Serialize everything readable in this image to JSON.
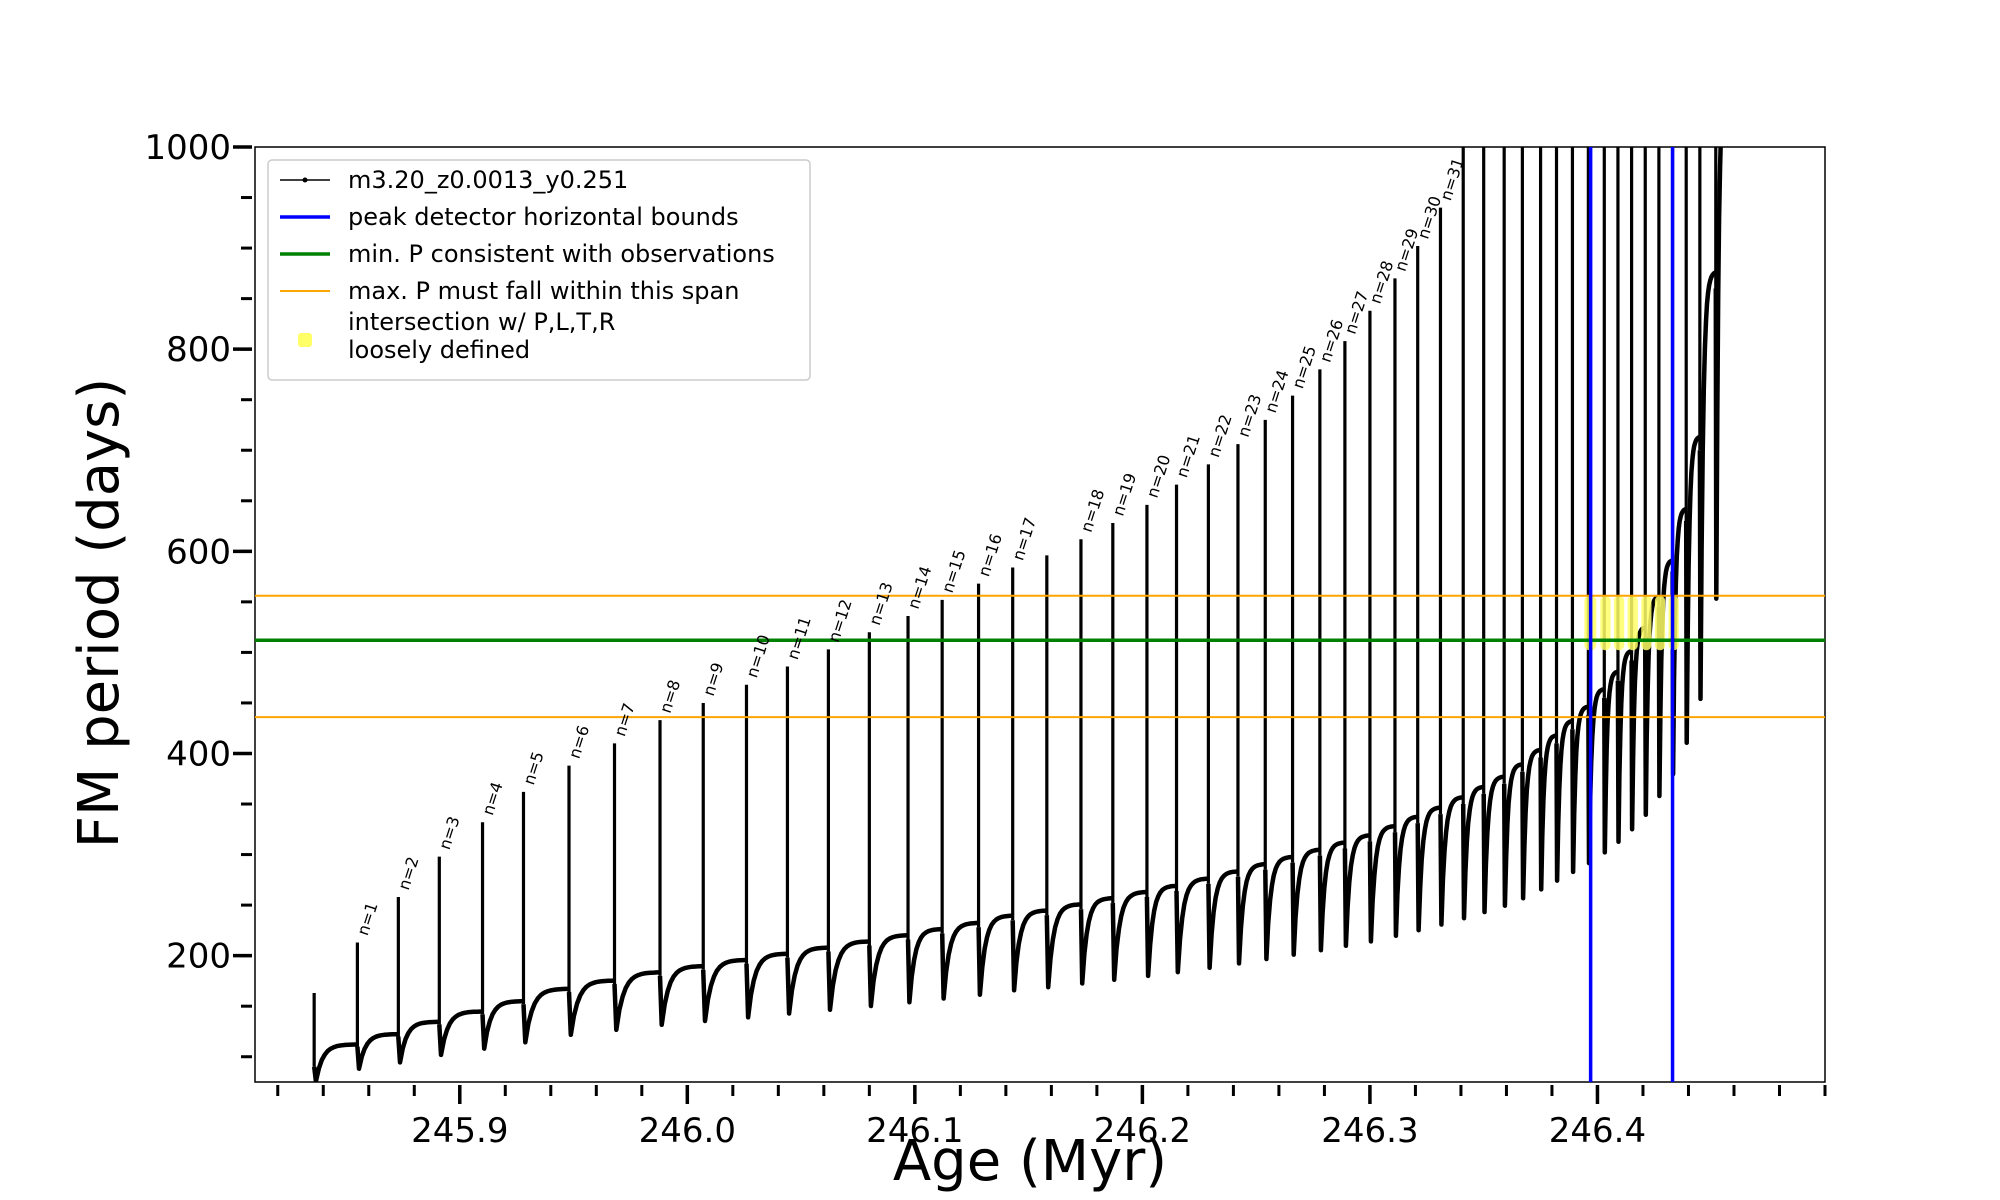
{
  "chart_data": {
    "type": "line",
    "title": "",
    "xlabel": "Age (Myr)",
    "ylabel": "FM period (days)",
    "xlim": [
      245.81,
      246.5
    ],
    "ylim": [
      75,
      1000
    ],
    "xticks": [
      245.9,
      246.0,
      246.1,
      246.2,
      246.3,
      246.4
    ],
    "xtick_labels": [
      "245.9",
      "246.0",
      "246.1",
      "246.2",
      "246.3",
      "246.4"
    ],
    "yticks": [
      200,
      400,
      600,
      800,
      1000
    ],
    "ytick_labels": [
      "200",
      "400",
      "600",
      "800",
      "1000"
    ],
    "grid": false,
    "legend_position": "top-left",
    "legend": [
      {
        "label": "m3.20_z0.0013_y0.251",
        "color": "#000000",
        "style": "line-marker"
      },
      {
        "label": "peak detector horizontal bounds",
        "color": "#0000ff",
        "style": "line"
      },
      {
        "label": "min. P consistent with observations",
        "color": "#008000",
        "style": "line"
      },
      {
        "label": "max. P must fall within this span",
        "color": "#ffa500",
        "style": "thin-line"
      },
      {
        "label": "intersection w/ P,L,T,R",
        "label2": "loosely defined",
        "color": "#ffff66",
        "style": "marker"
      }
    ],
    "series": [
      {
        "name": "m3.20_z0.0013_y0.251",
        "color": "#000000",
        "pulses": [
          {
            "n": "",
            "t": 245.836,
            "peak": 163,
            "base": 90
          },
          {
            "n": "n=1",
            "t": 245.855,
            "peak": 213,
            "base": 110
          },
          {
            "n": "n=2",
            "t": 245.873,
            "peak": 258,
            "base": 120
          },
          {
            "n": "n=3",
            "t": 245.891,
            "peak": 298,
            "base": 132
          },
          {
            "n": "n=4",
            "t": 245.91,
            "peak": 332,
            "base": 142
          },
          {
            "n": "n=5",
            "t": 245.928,
            "peak": 362,
            "base": 152
          },
          {
            "n": "n=6",
            "t": 245.948,
            "peak": 388,
            "base": 164
          },
          {
            "n": "n=7",
            "t": 245.968,
            "peak": 410,
            "base": 172
          },
          {
            "n": "n=8",
            "t": 245.988,
            "peak": 433,
            "base": 180
          },
          {
            "n": "n=9",
            "t": 246.007,
            "peak": 450,
            "base": 186
          },
          {
            "n": "n=10",
            "t": 246.026,
            "peak": 468,
            "base": 192
          },
          {
            "n": "n=11",
            "t": 246.044,
            "peak": 486,
            "base": 198
          },
          {
            "n": "n=12",
            "t": 246.062,
            "peak": 503,
            "base": 204
          },
          {
            "n": "n=13",
            "t": 246.08,
            "peak": 520,
            "base": 210
          },
          {
            "n": "n=14",
            "t": 246.097,
            "peak": 536,
            "base": 216
          },
          {
            "n": "n=15",
            "t": 246.112,
            "peak": 552,
            "base": 222
          },
          {
            "n": "n=16",
            "t": 246.128,
            "peak": 568,
            "base": 228
          },
          {
            "n": "n=17",
            "t": 246.143,
            "peak": 584,
            "base": 235
          },
          {
            "n": "",
            "t": 246.158,
            "peak": 596,
            "base": 240
          },
          {
            "n": "n=18",
            "t": 246.173,
            "peak": 612,
            "base": 246
          },
          {
            "n": "n=19",
            "t": 246.187,
            "peak": 628,
            "base": 252
          },
          {
            "n": "n=20",
            "t": 246.202,
            "peak": 646,
            "base": 258
          },
          {
            "n": "n=21",
            "t": 246.215,
            "peak": 666,
            "base": 264
          },
          {
            "n": "n=22",
            "t": 246.229,
            "peak": 686,
            "base": 271
          },
          {
            "n": "n=23",
            "t": 246.242,
            "peak": 706,
            "base": 278
          },
          {
            "n": "n=24",
            "t": 246.254,
            "peak": 730,
            "base": 285
          },
          {
            "n": "n=25",
            "t": 246.266,
            "peak": 754,
            "base": 292
          },
          {
            "n": "n=26",
            "t": 246.278,
            "peak": 780,
            "base": 299
          },
          {
            "n": "n=27",
            "t": 246.289,
            "peak": 808,
            "base": 306
          },
          {
            "n": "n=28",
            "t": 246.3,
            "peak": 838,
            "base": 313
          },
          {
            "n": "n=29",
            "t": 246.311,
            "peak": 870,
            "base": 322
          },
          {
            "n": "n=30",
            "t": 246.321,
            "peak": 902,
            "base": 331
          },
          {
            "n": "n=31",
            "t": 246.331,
            "peak": 940,
            "base": 340
          },
          {
            "n": "",
            "t": 246.341,
            "peak": 1000,
            "base": 350
          },
          {
            "n": "",
            "t": 246.35,
            "peak": 1000,
            "base": 360
          },
          {
            "n": "",
            "t": 246.359,
            "peak": 1000,
            "base": 370
          },
          {
            "n": "",
            "t": 246.367,
            "peak": 1000,
            "base": 382
          },
          {
            "n": "",
            "t": 246.375,
            "peak": 1000,
            "base": 396
          },
          {
            "n": "",
            "t": 246.382,
            "peak": 1000,
            "base": 410
          },
          {
            "n": "",
            "t": 246.389,
            "peak": 1000,
            "base": 424
          },
          {
            "n": "",
            "t": 246.396,
            "peak": 1000,
            "base": 438
          },
          {
            "n": "",
            "t": 246.403,
            "peak": 1000,
            "base": 455
          },
          {
            "n": "",
            "t": 246.409,
            "peak": 1000,
            "base": 472
          },
          {
            "n": "",
            "t": 246.415,
            "peak": 1000,
            "base": 492
          },
          {
            "n": "",
            "t": 246.421,
            "peak": 1000,
            "base": 515
          },
          {
            "n": "",
            "t": 246.427,
            "peak": 1000,
            "base": 545
          },
          {
            "n": "",
            "t": 246.433,
            "peak": 1000,
            "base": 580
          },
          {
            "n": "",
            "t": 246.439,
            "peak": 1000,
            "base": 630
          },
          {
            "n": "",
            "t": 246.445,
            "peak": 1000,
            "base": 700
          },
          {
            "n": "",
            "t": 246.452,
            "peak": 1000,
            "base": 860
          }
        ]
      }
    ],
    "hlines": [
      {
        "label": "min. P consistent with observations",
        "y": 512,
        "color": "#008000"
      },
      {
        "label": "max. P must fall within this span (upper)",
        "y": 556,
        "color": "#ffa500"
      },
      {
        "label": "max. P must fall within this span (lower)",
        "y": 436,
        "color": "#ffa500"
      }
    ],
    "vlines": [
      {
        "label": "peak detector horizontal bounds (left)",
        "x": 246.397,
        "color": "#0000ff"
      },
      {
        "label": "peak detector horizontal bounds (right)",
        "x": 246.433,
        "color": "#0000ff"
      }
    ],
    "intersection": {
      "x_range": [
        246.397,
        246.433
      ],
      "y_range": [
        512,
        556
      ],
      "color": "#ffff66"
    }
  }
}
